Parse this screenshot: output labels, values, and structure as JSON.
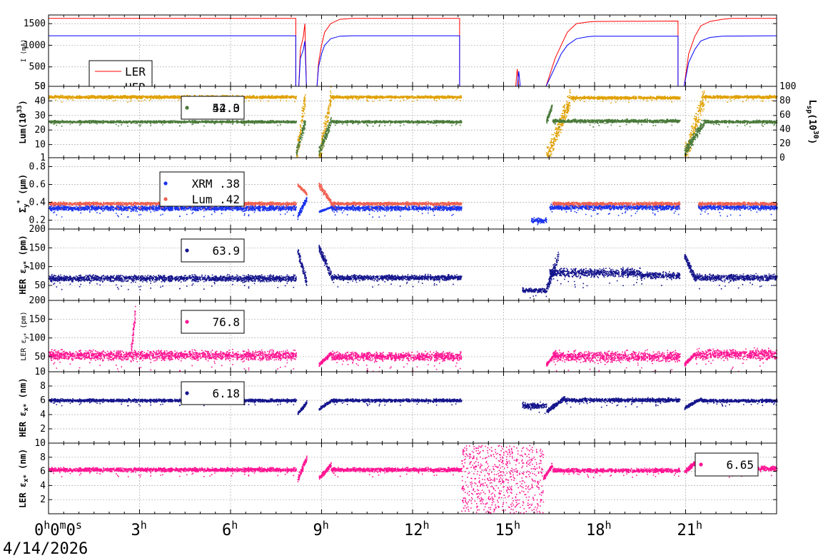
{
  "x_axis": {
    "range_hours": [
      0,
      24
    ],
    "ticks": [
      {
        "hour": 0,
        "main": "0",
        "sup": "h",
        "extra": "0m0s"
      },
      {
        "hour": 3,
        "main": "3",
        "sup": "h"
      },
      {
        "hour": 6,
        "main": "6",
        "sup": "h"
      },
      {
        "hour": 9,
        "main": "9",
        "sup": "h"
      },
      {
        "hour": 12,
        "main": "12",
        "sup": "h"
      },
      {
        "hour": 15,
        "main": "15",
        "sup": "h"
      },
      {
        "hour": 18,
        "main": "18",
        "sup": "h"
      },
      {
        "hour": 21,
        "main": "21",
        "sup": "h"
      }
    ],
    "date": "4/14/2026"
  },
  "colors": {
    "ler": "#ff0000",
    "her": "#0000ff",
    "gold": "#e0a000",
    "green": "#4a7a3a",
    "xrm": "#1a33ee",
    "salmon": "#f06050",
    "navy": "#14148c",
    "pink": "#ff1493"
  },
  "chart_data": [
    {
      "id": "current",
      "type": "line",
      "ylabel": "I (mA)",
      "ylim": [
        50,
        1700
      ],
      "yticks": [
        "50",
        "500",
        "1000",
        "1500"
      ],
      "legend": [
        {
          "label": "LER",
          "color": "#ff0000"
        },
        {
          "label": "HER",
          "color": "#0000ff"
        }
      ],
      "series": [
        {
          "name": "LER",
          "color": "#ff0000",
          "points": [
            [
              0,
              1620
            ],
            [
              8.15,
              1620
            ],
            [
              8.15,
              50
            ],
            [
              8.25,
              50
            ],
            [
              8.3,
              900
            ],
            [
              8.4,
              1200
            ],
            [
              8.45,
              1500
            ],
            [
              8.5,
              50
            ],
            [
              8.85,
              50
            ],
            [
              8.9,
              600
            ],
            [
              9.0,
              1000
            ],
            [
              9.1,
              1300
            ],
            [
              9.3,
              1500
            ],
            [
              9.6,
              1600
            ],
            [
              10,
              1620
            ],
            [
              13.55,
              1620
            ],
            [
              13.55,
              50
            ],
            [
              15.4,
              50
            ],
            [
              15.45,
              450
            ],
            [
              15.5,
              50
            ],
            [
              16.4,
              50
            ],
            [
              16.7,
              700
            ],
            [
              16.9,
              1000
            ],
            [
              17.1,
              1300
            ],
            [
              17.4,
              1500
            ],
            [
              17.8,
              1540
            ],
            [
              18,
              1550
            ],
            [
              20.75,
              1560
            ],
            [
              20.75,
              50
            ],
            [
              20.95,
              50
            ],
            [
              21.1,
              800
            ],
            [
              21.3,
              1200
            ],
            [
              21.5,
              1450
            ],
            [
              21.8,
              1550
            ],
            [
              22.2,
              1600
            ],
            [
              22.5,
              1620
            ],
            [
              24,
              1620
            ]
          ]
        },
        {
          "name": "HER",
          "color": "#0000ff",
          "points": [
            [
              0,
              1220
            ],
            [
              8.15,
              1220
            ],
            [
              8.15,
              50
            ],
            [
              8.25,
              50
            ],
            [
              8.3,
              700
            ],
            [
              8.4,
              900
            ],
            [
              8.45,
              1100
            ],
            [
              8.5,
              50
            ],
            [
              8.85,
              50
            ],
            [
              8.9,
              500
            ],
            [
              9.0,
              800
            ],
            [
              9.1,
              1000
            ],
            [
              9.3,
              1150
            ],
            [
              9.6,
              1210
            ],
            [
              10,
              1220
            ],
            [
              13.55,
              1220
            ],
            [
              13.55,
              50
            ],
            [
              15.45,
              50
            ],
            [
              15.5,
              400
            ],
            [
              15.55,
              50
            ],
            [
              16.4,
              50
            ],
            [
              16.7,
              500
            ],
            [
              16.9,
              800
            ],
            [
              17.1,
              1000
            ],
            [
              17.4,
              1150
            ],
            [
              17.8,
              1200
            ],
            [
              18,
              1210
            ],
            [
              20.75,
              1210
            ],
            [
              20.75,
              50
            ],
            [
              20.95,
              50
            ],
            [
              21.1,
              600
            ],
            [
              21.3,
              900
            ],
            [
              21.5,
              1100
            ],
            [
              21.8,
              1180
            ],
            [
              22.2,
              1210
            ],
            [
              24,
              1220
            ]
          ]
        }
      ]
    },
    {
      "id": "lumi",
      "type": "scatter",
      "ylabel": "Lum(10",
      "ylabel_sup": "33",
      "ylabel_end": ")",
      "ylim": [
        1,
        50
      ],
      "yticks": [
        "1",
        "10",
        "20",
        "30",
        "40",
        "50"
      ],
      "y2label": "L",
      "y2label_sub": "sp",
      "y2label_mid": "(10",
      "y2label_sup": "30",
      "y2label_end": ")",
      "y2lim": [
        0,
        100
      ],
      "y2ticks": [
        "0",
        "20",
        "40",
        "60",
        "80",
        "100"
      ],
      "legend": [
        {
          "label": "54.3",
          "color": "#e0a000"
        },
        {
          "label": "42.0",
          "color": "#4a7a3a"
        }
      ],
      "series": [
        {
          "name": "54.3",
          "color": "#e0a000",
          "segments": [
            [
              0.0,
              8.15,
              43,
              0.7
            ],
            [
              9.3,
              13.6,
              43,
              0.6
            ],
            [
              17.2,
              20.8,
              42.5,
              0.7
            ],
            [
              21.6,
              24,
              43,
              0.7
            ]
          ],
          "ramps": [
            [
              8.15,
              8.45,
              1,
              43
            ],
            [
              8.9,
              9.3,
              1,
              43
            ],
            [
              16.4,
              17.2,
              1,
              42.5
            ],
            [
              20.95,
              21.6,
              1,
              43
            ]
          ]
        },
        {
          "name": "42.0",
          "color": "#4a7a3a",
          "segments": [
            [
              0.0,
              8.15,
              26,
              0.6
            ],
            [
              9.3,
              13.6,
              26,
              0.6
            ],
            [
              16.6,
              20.8,
              26.5,
              0.8
            ],
            [
              21.6,
              24,
              26,
              0.7
            ]
          ],
          "ramps": [
            [
              8.15,
              8.45,
              5,
              26
            ],
            [
              8.9,
              9.3,
              5,
              26
            ],
            [
              16.4,
              16.6,
              26,
              38
            ],
            [
              20.95,
              21.6,
              5,
              26
            ]
          ]
        }
      ]
    },
    {
      "id": "sigma",
      "type": "scatter",
      "ylabel": "Σ",
      "ylabel_sub": "y",
      "ylabel_sup": "*",
      "ylabel_end": " (μm)",
      "ylim": [
        0.1,
        0.9
      ],
      "yticks": [
        "0.2",
        "0.4",
        "0.6",
        "0.8"
      ],
      "legend": [
        {
          "label": "XRM  .38",
          "color": "#1a33ee"
        },
        {
          "label": "Lum  .42",
          "color": "#f06050"
        }
      ],
      "series": [
        {
          "name": "XRM",
          "color": "#1a33ee",
          "segments": [
            [
              0.0,
              8.15,
              0.34,
              0.02
            ],
            [
              9.3,
              13.6,
              0.34,
              0.02
            ],
            [
              15.9,
              16.4,
              0.2,
              0.02
            ],
            [
              16.5,
              20.8,
              0.35,
              0.02
            ],
            [
              21.4,
              24,
              0.35,
              0.02
            ]
          ],
          "ramps": [
            [
              8.2,
              8.5,
              0.25,
              0.45
            ],
            [
              8.9,
              9.3,
              0.3,
              0.35
            ]
          ]
        },
        {
          "name": "Lum",
          "color": "#f06050",
          "segments": [
            [
              0.0,
              8.15,
              0.39,
              0.012
            ],
            [
              9.3,
              13.6,
              0.39,
              0.012
            ],
            [
              16.6,
              20.8,
              0.39,
              0.012
            ],
            [
              21.4,
              24,
              0.39,
              0.012
            ]
          ],
          "ramps": [
            [
              8.2,
              8.5,
              0.6,
              0.5
            ],
            [
              8.9,
              9.3,
              0.6,
              0.4
            ]
          ]
        }
      ]
    },
    {
      "id": "her_ey",
      "type": "scatter",
      "ylabel": "HER ε",
      "ylabel_sub": "y*",
      "ylabel_end": " (pm)",
      "ylim": [
        10,
        200
      ],
      "yticks": [
        "50",
        "100",
        "150",
        "200"
      ],
      "legend": [
        {
          "label": "63.9",
          "color": "#14148c"
        }
      ],
      "series": [
        {
          "name": "63.9",
          "color": "#14148c",
          "segments": [
            [
              0.0,
              8.15,
              70,
              6
            ],
            [
              9.3,
              13.6,
              72,
              5
            ],
            [
              15.6,
              16.4,
              38,
              4
            ],
            [
              16.5,
              19.5,
              85,
              8
            ],
            [
              19.5,
              20.8,
              78,
              6
            ],
            [
              21.3,
              24,
              72,
              6
            ]
          ],
          "ramps": [
            [
              8.2,
              8.5,
              140,
              60
            ],
            [
              8.9,
              9.3,
              150,
              80
            ],
            [
              16.4,
              16.8,
              40,
              130
            ],
            [
              20.95,
              21.3,
              130,
              70
            ]
          ]
        }
      ]
    },
    {
      "id": "ler_ey",
      "type": "scatter",
      "ylabel": "LER ε",
      "ylabel_sub": "y*",
      "ylabel_end": " (pm)",
      "ylim": [
        10,
        200
      ],
      "yticks": [
        "10",
        "50",
        "100",
        "150",
        "200"
      ],
      "legend": [
        {
          "label": "76.8",
          "color": "#ff1493"
        }
      ],
      "series": [
        {
          "name": "76.8",
          "color": "#ff1493",
          "segments": [
            [
              0.0,
              8.15,
              55,
              9
            ],
            [
              9.3,
              13.6,
              52,
              8
            ],
            [
              16.6,
              20.8,
              52,
              10
            ],
            [
              21.3,
              24,
              58,
              10
            ]
          ],
          "ramps": [
            [
              2.7,
              2.85,
              60,
              170
            ],
            [
              8.9,
              9.3,
              30,
              60
            ],
            [
              16.4,
              16.7,
              30,
              60
            ],
            [
              20.95,
              21.3,
              30,
              60
            ]
          ]
        }
      ]
    },
    {
      "id": "her_ex",
      "type": "scatter",
      "ylabel": "HER ε",
      "ylabel_sub": "x*",
      "ylabel_end": " (nm)",
      "ylim": [
        0,
        10
      ],
      "yticks": [
        "2",
        "4",
        "6",
        "8"
      ],
      "legend": [
        {
          "label": "6.18",
          "color": "#14148c"
        }
      ],
      "series": [
        {
          "name": "6.18",
          "color": "#14148c",
          "segments": [
            [
              0.0,
              8.15,
              6.05,
              0.15
            ],
            [
              9.3,
              13.6,
              6.05,
              0.15
            ],
            [
              15.6,
              16.4,
              5.3,
              0.3
            ],
            [
              17.0,
              20.8,
              6.1,
              0.2
            ],
            [
              21.5,
              24,
              6.0,
              0.15
            ]
          ],
          "ramps": [
            [
              8.2,
              8.5,
              4.2,
              5.8
            ],
            [
              8.9,
              9.3,
              4.8,
              6.0
            ],
            [
              16.4,
              17.0,
              4.5,
              6.4
            ],
            [
              20.95,
              21.5,
              5.0,
              6.3
            ]
          ]
        }
      ]
    },
    {
      "id": "ler_ex",
      "type": "scatter",
      "ylabel": "LER ε",
      "ylabel_sub": "x*",
      "ylabel_end": " (nm)",
      "ylim": [
        0,
        10
      ],
      "yticks": [
        "2",
        "4",
        "6",
        "8",
        "10"
      ],
      "legend": [
        {
          "label": "6.65",
          "color": "#ff1493"
        }
      ],
      "series": [
        {
          "name": "6.65",
          "color": "#ff1493",
          "segments": [
            [
              0.0,
              8.15,
              6.3,
              0.2
            ],
            [
              9.3,
              13.6,
              6.3,
              0.2
            ],
            [
              16.6,
              20.8,
              6.2,
              0.2
            ],
            [
              21.5,
              24,
              6.5,
              0.25
            ]
          ],
          "ramps": [
            [
              8.2,
              8.5,
              5,
              8
            ],
            [
              8.9,
              9.3,
              5,
              7
            ],
            [
              16.3,
              16.6,
              5,
              7
            ],
            [
              20.95,
              21.5,
              6,
              8
            ]
          ],
          "noise": [
            [
              13.6,
              16.3,
              0.2,
              9.8
            ]
          ]
        }
      ]
    }
  ]
}
